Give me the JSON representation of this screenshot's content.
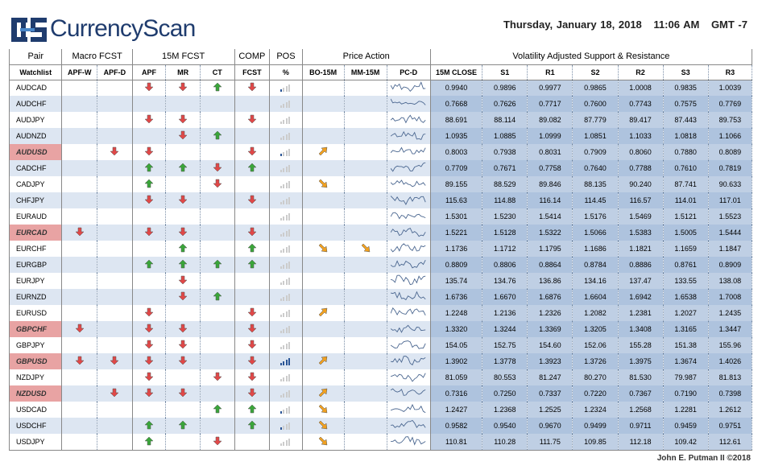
{
  "app": {
    "brand": "CurrencyScan",
    "date": "Thursday, January 18, 2018",
    "time": "11:06 AM",
    "tz": "GMT -7",
    "footer": "John E. Putman II ©2018"
  },
  "groups": [
    "Pair",
    "Macro FCST",
    "15M FCST",
    "COMP",
    "POS",
    "Price Action",
    "Volatility Adjusted Support & Resistance"
  ],
  "columns": [
    "Watchlist",
    "APF-W",
    "APF-D",
    "APF",
    "MR",
    "CT",
    "FCST",
    "%",
    "BO-15M",
    "MM-15M",
    "PC-D",
    "15M CLOSE",
    "S1",
    "R1",
    "S2",
    "R2",
    "S3",
    "R3"
  ],
  "rows": [
    {
      "pair": "AUDCAD",
      "hl": false,
      "apfw": "",
      "apfd": "",
      "apf": "down",
      "mr": "down",
      "ct": "up",
      "fcst": "down",
      "pos": 1,
      "bo": "",
      "mm": "",
      "close": "0.9940",
      "s1": "0.9896",
      "r1": "0.9977",
      "s2": "0.9865",
      "r2": "1.0008",
      "s3": "0.9835",
      "r3": "1.0039"
    },
    {
      "pair": "AUDCHF",
      "hl": false,
      "apfw": "",
      "apfd": "",
      "apf": "",
      "mr": "",
      "ct": "",
      "fcst": "",
      "pos": 0,
      "bo": "",
      "mm": "",
      "close": "0.7668",
      "s1": "0.7626",
      "r1": "0.7717",
      "s2": "0.7600",
      "r2": "0.7743",
      "s3": "0.7575",
      "r3": "0.7769"
    },
    {
      "pair": "AUDJPY",
      "hl": false,
      "apfw": "",
      "apfd": "",
      "apf": "down",
      "mr": "down",
      "ct": "",
      "fcst": "down",
      "pos": 0,
      "bo": "",
      "mm": "",
      "close": "88.691",
      "s1": "88.114",
      "r1": "89.082",
      "s2": "87.779",
      "r2": "89.417",
      "s3": "87.443",
      "r3": "89.753"
    },
    {
      "pair": "AUDNZD",
      "hl": false,
      "apfw": "",
      "apfd": "",
      "apf": "",
      "mr": "down",
      "ct": "up",
      "fcst": "",
      "pos": 0,
      "bo": "",
      "mm": "",
      "close": "1.0935",
      "s1": "1.0885",
      "r1": "1.0999",
      "s2": "1.0851",
      "r2": "1.1033",
      "s3": "1.0818",
      "r3": "1.1066"
    },
    {
      "pair": "AUDUSD",
      "hl": true,
      "apfw": "",
      "apfd": "down",
      "apf": "down",
      "mr": "",
      "ct": "",
      "fcst": "down",
      "pos": 1,
      "bo": "upr",
      "mm": "",
      "close": "0.8003",
      "s1": "0.7938",
      "r1": "0.8031",
      "s2": "0.7909",
      "r2": "0.8060",
      "s3": "0.7880",
      "r3": "0.8089"
    },
    {
      "pair": "CADCHF",
      "hl": false,
      "apfw": "",
      "apfd": "",
      "apf": "up",
      "mr": "up",
      "ct": "down",
      "fcst": "up",
      "pos": 0,
      "bo": "",
      "mm": "",
      "close": "0.7709",
      "s1": "0.7671",
      "r1": "0.7758",
      "s2": "0.7640",
      "r2": "0.7788",
      "s3": "0.7610",
      "r3": "0.7819"
    },
    {
      "pair": "CADJPY",
      "hl": false,
      "apfw": "",
      "apfd": "",
      "apf": "up",
      "mr": "",
      "ct": "down",
      "fcst": "",
      "pos": 0,
      "bo": "dnr",
      "mm": "",
      "close": "89.155",
      "s1": "88.529",
      "r1": "89.846",
      "s2": "88.135",
      "r2": "90.240",
      "s3": "87.741",
      "r3": "90.633"
    },
    {
      "pair": "CHFJPY",
      "hl": false,
      "apfw": "",
      "apfd": "",
      "apf": "down",
      "mr": "down",
      "ct": "",
      "fcst": "down",
      "pos": 0,
      "bo": "",
      "mm": "",
      "close": "115.63",
      "s1": "114.88",
      "r1": "116.14",
      "s2": "114.45",
      "r2": "116.57",
      "s3": "114.01",
      "r3": "117.01"
    },
    {
      "pair": "EURAUD",
      "hl": false,
      "apfw": "",
      "apfd": "",
      "apf": "",
      "mr": "",
      "ct": "",
      "fcst": "",
      "pos": 0,
      "bo": "",
      "mm": "",
      "close": "1.5301",
      "s1": "1.5230",
      "r1": "1.5414",
      "s2": "1.5176",
      "r2": "1.5469",
      "s3": "1.5121",
      "r3": "1.5523"
    },
    {
      "pair": "EURCAD",
      "hl": true,
      "apfw": "down",
      "apfd": "",
      "apf": "down",
      "mr": "down",
      "ct": "",
      "fcst": "down",
      "pos": 0,
      "bo": "",
      "mm": "",
      "close": "1.5221",
      "s1": "1.5128",
      "r1": "1.5322",
      "s2": "1.5066",
      "r2": "1.5383",
      "s3": "1.5005",
      "r3": "1.5444"
    },
    {
      "pair": "EURCHF",
      "hl": false,
      "apfw": "",
      "apfd": "",
      "apf": "",
      "mr": "up",
      "ct": "",
      "fcst": "up",
      "pos": 0,
      "bo": "dnr",
      "mm": "dnr",
      "close": "1.1736",
      "s1": "1.1712",
      "r1": "1.1795",
      "s2": "1.1686",
      "r2": "1.1821",
      "s3": "1.1659",
      "r3": "1.1847"
    },
    {
      "pair": "EURGBP",
      "hl": false,
      "apfw": "",
      "apfd": "",
      "apf": "up",
      "mr": "up",
      "ct": "up",
      "fcst": "up",
      "pos": 0,
      "bo": "",
      "mm": "",
      "close": "0.8809",
      "s1": "0.8806",
      "r1": "0.8864",
      "s2": "0.8784",
      "r2": "0.8886",
      "s3": "0.8761",
      "r3": "0.8909"
    },
    {
      "pair": "EURJPY",
      "hl": false,
      "apfw": "",
      "apfd": "",
      "apf": "",
      "mr": "down",
      "ct": "",
      "fcst": "",
      "pos": 0,
      "bo": "",
      "mm": "",
      "close": "135.74",
      "s1": "134.76",
      "r1": "136.86",
      "s2": "134.16",
      "r2": "137.47",
      "s3": "133.55",
      "r3": "138.08"
    },
    {
      "pair": "EURNZD",
      "hl": false,
      "apfw": "",
      "apfd": "",
      "apf": "",
      "mr": "down",
      "ct": "up",
      "fcst": "",
      "pos": 0,
      "bo": "",
      "mm": "",
      "close": "1.6736",
      "s1": "1.6670",
      "r1": "1.6876",
      "s2": "1.6604",
      "r2": "1.6942",
      "s3": "1.6538",
      "r3": "1.7008"
    },
    {
      "pair": "EURUSD",
      "hl": false,
      "apfw": "",
      "apfd": "",
      "apf": "down",
      "mr": "",
      "ct": "",
      "fcst": "down",
      "pos": 0,
      "bo": "upr",
      "mm": "",
      "close": "1.2248",
      "s1": "1.2136",
      "r1": "1.2326",
      "s2": "1.2082",
      "r2": "1.2381",
      "s3": "1.2027",
      "r3": "1.2435"
    },
    {
      "pair": "GBPCHF",
      "hl": true,
      "apfw": "down",
      "apfd": "",
      "apf": "down",
      "mr": "down",
      "ct": "",
      "fcst": "down",
      "pos": 0,
      "bo": "",
      "mm": "",
      "close": "1.3320",
      "s1": "1.3244",
      "r1": "1.3369",
      "s2": "1.3205",
      "r2": "1.3408",
      "s3": "1.3165",
      "r3": "1.3447"
    },
    {
      "pair": "GBPJPY",
      "hl": false,
      "apfw": "",
      "apfd": "",
      "apf": "down",
      "mr": "down",
      "ct": "",
      "fcst": "down",
      "pos": 0,
      "bo": "",
      "mm": "",
      "close": "154.05",
      "s1": "152.75",
      "r1": "154.60",
      "s2": "152.06",
      "r2": "155.28",
      "s3": "151.38",
      "r3": "155.96"
    },
    {
      "pair": "GBPUSD",
      "hl": true,
      "apfw": "down",
      "apfd": "down",
      "apf": "down",
      "mr": "down",
      "ct": "",
      "fcst": "down",
      "pos": 4,
      "bo": "upr",
      "mm": "",
      "close": "1.3902",
      "s1": "1.3778",
      "r1": "1.3923",
      "s2": "1.3726",
      "r2": "1.3975",
      "s3": "1.3674",
      "r3": "1.4026"
    },
    {
      "pair": "NZDJPY",
      "hl": false,
      "apfw": "",
      "apfd": "",
      "apf": "down",
      "mr": "",
      "ct": "down",
      "fcst": "down",
      "pos": 0,
      "bo": "",
      "mm": "",
      "close": "81.059",
      "s1": "80.553",
      "r1": "81.247",
      "s2": "80.270",
      "r2": "81.530",
      "s3": "79.987",
      "r3": "81.813"
    },
    {
      "pair": "NZDUSD",
      "hl": true,
      "apfw": "",
      "apfd": "down",
      "apf": "down",
      "mr": "down",
      "ct": "",
      "fcst": "down",
      "pos": 0,
      "bo": "upr",
      "mm": "",
      "close": "0.7316",
      "s1": "0.7250",
      "r1": "0.7337",
      "s2": "0.7220",
      "r2": "0.7367",
      "s3": "0.7190",
      "r3": "0.7398"
    },
    {
      "pair": "USDCAD",
      "hl": false,
      "apfw": "",
      "apfd": "",
      "apf": "",
      "mr": "",
      "ct": "up",
      "fcst": "up",
      "pos": 1,
      "bo": "dnr",
      "mm": "",
      "close": "1.2427",
      "s1": "1.2368",
      "r1": "1.2525",
      "s2": "1.2324",
      "r2": "1.2568",
      "s3": "1.2281",
      "r3": "1.2612"
    },
    {
      "pair": "USDCHF",
      "hl": false,
      "apfw": "",
      "apfd": "",
      "apf": "up",
      "mr": "up",
      "ct": "",
      "fcst": "up",
      "pos": 1,
      "bo": "dnr",
      "mm": "",
      "close": "0.9582",
      "s1": "0.9540",
      "r1": "0.9670",
      "s2": "0.9499",
      "r2": "0.9711",
      "s3": "0.9459",
      "r3": "0.9751"
    },
    {
      "pair": "USDJPY",
      "hl": false,
      "apfw": "",
      "apfd": "",
      "apf": "up",
      "mr": "",
      "ct": "down",
      "fcst": "",
      "pos": 0,
      "bo": "dnr",
      "mm": "",
      "close": "110.81",
      "s1": "110.28",
      "r1": "111.75",
      "s2": "109.85",
      "r2": "112.18",
      "s3": "109.42",
      "r3": "112.61"
    }
  ],
  "colors": {
    "up": "#3aa53a",
    "down": "#e04848",
    "orange": "#f0a020",
    "brand": "#1f3c6e",
    "highlight": "#e8a3a3",
    "band": "#dde6f2"
  }
}
